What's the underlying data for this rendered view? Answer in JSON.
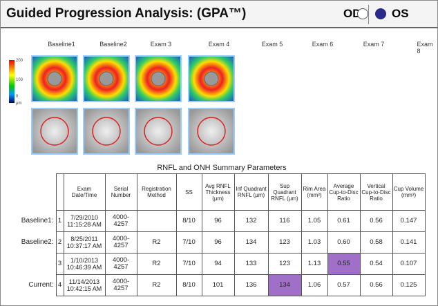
{
  "header": {
    "title": "Guided Progression Analysis: (GPA™)",
    "od": "OD",
    "os": "OS"
  },
  "exams": [
    "Baseline1",
    "Baseline2",
    "Exam 3",
    "Exam 4",
    "Exam 5",
    "Exam 6",
    "Exam 7",
    "Exam 8"
  ],
  "scale": [
    "200",
    "100",
    "0",
    "µm"
  ],
  "table": {
    "title": "RNFL and ONH Summary Parameters",
    "columns": [
      "Exam Date/Time",
      "Serial Number",
      "Registration Method",
      "SS",
      "Avg RNFL Thickness (µm)",
      "Inf Quadrant RNFL (µm)",
      "Sup Quadrant RNFL (µm)",
      "Rim Area (mm²)",
      "Average Cup-to-Disc Ratio",
      "Vertical Cup-to-Disc Ratio",
      "Cup Volume (mm³)"
    ],
    "rows": [
      {
        "label": "Baseline1:",
        "index": "1",
        "cells": [
          "7/29/2010 11:15:28 AM",
          "4000-4257",
          null,
          "8/10",
          "96",
          "132",
          "116",
          "1.05",
          "0.61",
          "0.56",
          "0.147"
        ]
      },
      {
        "label": "Baseline2:",
        "index": "2",
        "cells": [
          "8/25/2011 10:37:17 AM",
          "4000-4257",
          "R2",
          "7/10",
          "96",
          "134",
          "123",
          "1.03",
          "0.60",
          "0.58",
          "0.141"
        ]
      },
      {
        "index": "3",
        "cells": [
          "1/10/2013 10:46:39 AM",
          "4000-4257",
          "R2",
          "7/10",
          "94",
          "133",
          "123",
          "1.13",
          "0.55",
          "0.54",
          "0.107"
        ]
      },
      {
        "label": "Current:",
        "index": "4",
        "cells": [
          "11/14/2013 10:42:15 AM",
          "4000-4257",
          "R2",
          "8/10",
          "101",
          "136",
          "134",
          "1.06",
          "0.57",
          "0.56",
          "0.125"
        ]
      }
    ]
  }
}
